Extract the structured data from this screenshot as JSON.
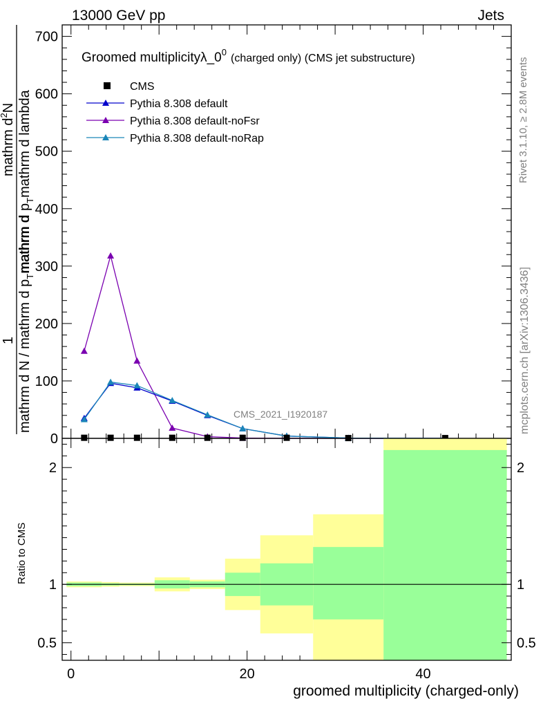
{
  "header": {
    "left": "13000 GeV pp",
    "right": "Jets"
  },
  "side_labels": {
    "rivet": "Rivet 3.1.10, ≥ 2.8M events",
    "mcplots": "mcplots.cern.ch [arXiv:1306.3436]"
  },
  "watermark": "CMS_2021_I1920187",
  "chart_data": {
    "type": "line",
    "title": "Groomed multiplicityλ_0",
    "title_sup": "0",
    "title_suffix": "(charged only) (CMS jet substructure)",
    "xlabel": "groomed multiplicity (charged-only)",
    "ylabel_parts": {
      "numerator_1": "1",
      "denominator_1": "mathrm d N / mathrm d p",
      "numerator_2": "mathrm d",
      "numerator_2_sup": "2",
      "numerator_2_rest": "N",
      "denominator_2": "mathrm d p",
      "denominator_2_rest": "mathrm d lambda",
      "sub_T": "T"
    },
    "xlim": [
      -1,
      50
    ],
    "ylim": [
      0,
      720
    ],
    "x_ticks": [
      0,
      20,
      40
    ],
    "y_ticks": [
      0,
      100,
      200,
      300,
      400,
      500,
      600,
      700
    ],
    "legend": [
      "CMS",
      "Pythia 8.308 default",
      "Pythia 8.308 default-noFsr",
      "Pythia 8.308 default-noRap"
    ],
    "colors": {
      "data": "#000000",
      "default": "#0000cc",
      "noFsr": "#7a00b0",
      "noRap": "#1a86b8",
      "band_outer": "#ffff99",
      "band_inner": "#99ff99"
    },
    "cms_points": {
      "x": [
        1.5,
        4.5,
        7.5,
        11.5,
        15.5,
        19.5,
        24.5,
        31.5,
        42.5
      ],
      "y": [
        1,
        1,
        1,
        1,
        1,
        1,
        1,
        0.5,
        0.5
      ]
    },
    "series": [
      {
        "name": "Pythia 8.308 default",
        "x": [
          1.5,
          4.5,
          7.5,
          11.5,
          15.5,
          19.5,
          24.5,
          31.5,
          42.5
        ],
        "y": [
          35,
          96,
          88,
          65,
          40,
          17,
          4,
          0.5,
          0.1
        ]
      },
      {
        "name": "Pythia 8.308 default-noFsr",
        "x": [
          1.5,
          4.5,
          7.5,
          11.5,
          15.5,
          19.5,
          24.5,
          31.5,
          42.5
        ],
        "y": [
          152,
          318,
          135,
          18,
          3,
          0.5,
          0.1,
          0,
          0
        ]
      },
      {
        "name": "Pythia 8.308 default-noRap",
        "x": [
          1.5,
          4.5,
          7.5,
          11.5,
          15.5,
          19.5,
          24.5,
          31.5,
          42.5
        ],
        "y": [
          33,
          98,
          92,
          66,
          41,
          17,
          4,
          0.5,
          0.1
        ]
      }
    ],
    "ratio": {
      "ylabel": "Ratio to CMS",
      "ylim": [
        0.35,
        2.25
      ],
      "y_ticks": [
        0.5,
        1,
        2
      ],
      "y_tick_labels": [
        "0.5",
        "1",
        "2"
      ],
      "bins": [
        {
          "lo": -0.5,
          "hi": 3.5,
          "outer": [
            0.975,
            1.025
          ],
          "inner": [
            0.985,
            1.015
          ]
        },
        {
          "lo": 3.5,
          "hi": 5.5,
          "outer": [
            0.98,
            1.02
          ],
          "inner": [
            0.99,
            1.01
          ]
        },
        {
          "lo": 5.5,
          "hi": 9.5,
          "outer": [
            0.985,
            1.015
          ],
          "inner": [
            0.993,
            1.007
          ]
        },
        {
          "lo": 9.5,
          "hi": 13.5,
          "outer": [
            0.94,
            1.06
          ],
          "inner": [
            0.965,
            1.035
          ]
        },
        {
          "lo": 13.5,
          "hi": 17.5,
          "outer": [
            0.96,
            1.04
          ],
          "inner": [
            0.975,
            1.025
          ]
        },
        {
          "lo": 17.5,
          "hi": 21.5,
          "outer": [
            0.78,
            1.22
          ],
          "inner": [
            0.9,
            1.1
          ]
        },
        {
          "lo": 21.5,
          "hi": 27.5,
          "outer": [
            0.58,
            1.42
          ],
          "inner": [
            0.82,
            1.18
          ]
        },
        {
          "lo": 27.5,
          "hi": 35.5,
          "outer": [
            0.35,
            1.6
          ],
          "inner": [
            0.7,
            1.32
          ]
        },
        {
          "lo": 35.5,
          "hi": 49.5,
          "outer": [
            0.35,
            2.25
          ],
          "inner": [
            0.35,
            2.15
          ]
        }
      ]
    }
  }
}
